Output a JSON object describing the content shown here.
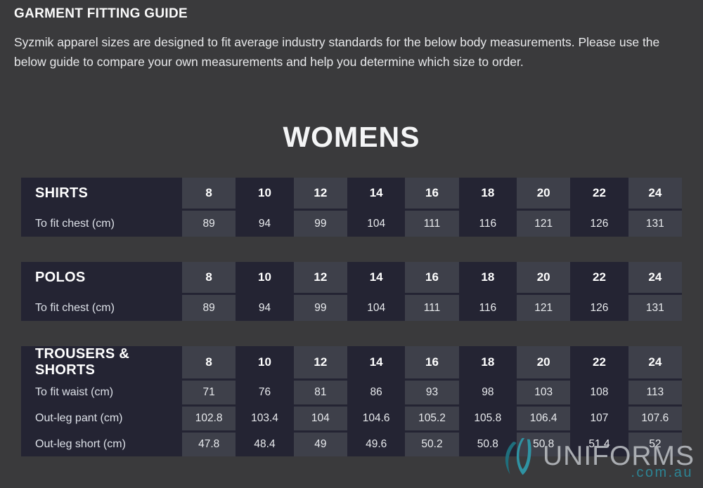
{
  "header": {
    "title": "GARMENT FITTING GUIDE",
    "intro": "Syzmik apparel sizes are designed to fit average industry standards for the below body measurements. Please use the below guide to compare your own measurements and help you determine which size to order."
  },
  "section": {
    "title": "WOMENS"
  },
  "sizes": [
    "8",
    "10",
    "12",
    "14",
    "16",
    "18",
    "20",
    "22",
    "24"
  ],
  "tables": [
    {
      "name": "SHIRTS",
      "rows": [
        {
          "label": "To fit chest (cm)",
          "values": [
            "89",
            "94",
            "99",
            "104",
            "111",
            "116",
            "121",
            "126",
            "131"
          ]
        }
      ]
    },
    {
      "name": "POLOS",
      "rows": [
        {
          "label": "To fit chest (cm)",
          "values": [
            "89",
            "94",
            "99",
            "104",
            "111",
            "116",
            "121",
            "126",
            "131"
          ]
        }
      ]
    },
    {
      "name": "TROUSERS & SHORTS",
      "rows": [
        {
          "label": "To fit waist (cm)",
          "values": [
            "71",
            "76",
            "81",
            "86",
            "93",
            "98",
            "103",
            "108",
            "113"
          ]
        },
        {
          "label": "Out-leg pant (cm)",
          "values": [
            "102.8",
            "103.4",
            "104",
            "104.6",
            "105.2",
            "105.8",
            "106.4",
            "107",
            "107.6"
          ]
        },
        {
          "label": "Out-leg short (cm)",
          "values": [
            "47.8",
            "48.4",
            "49",
            "49.6",
            "50.2",
            "50.8",
            "50.8",
            "51.4",
            "52"
          ]
        }
      ]
    }
  ],
  "logo": {
    "brand": "UNIFORMS",
    "tld": ".com.au"
  },
  "colors": {
    "page_bg": "#3a3a3c",
    "table_bg": "#242433",
    "cell_light": "#3e404a",
    "text_light": "#e9ebee",
    "teal_dark": "#1f6e7c",
    "teal_light": "#2f93a3",
    "logo_gray": "#b1b4b9"
  }
}
